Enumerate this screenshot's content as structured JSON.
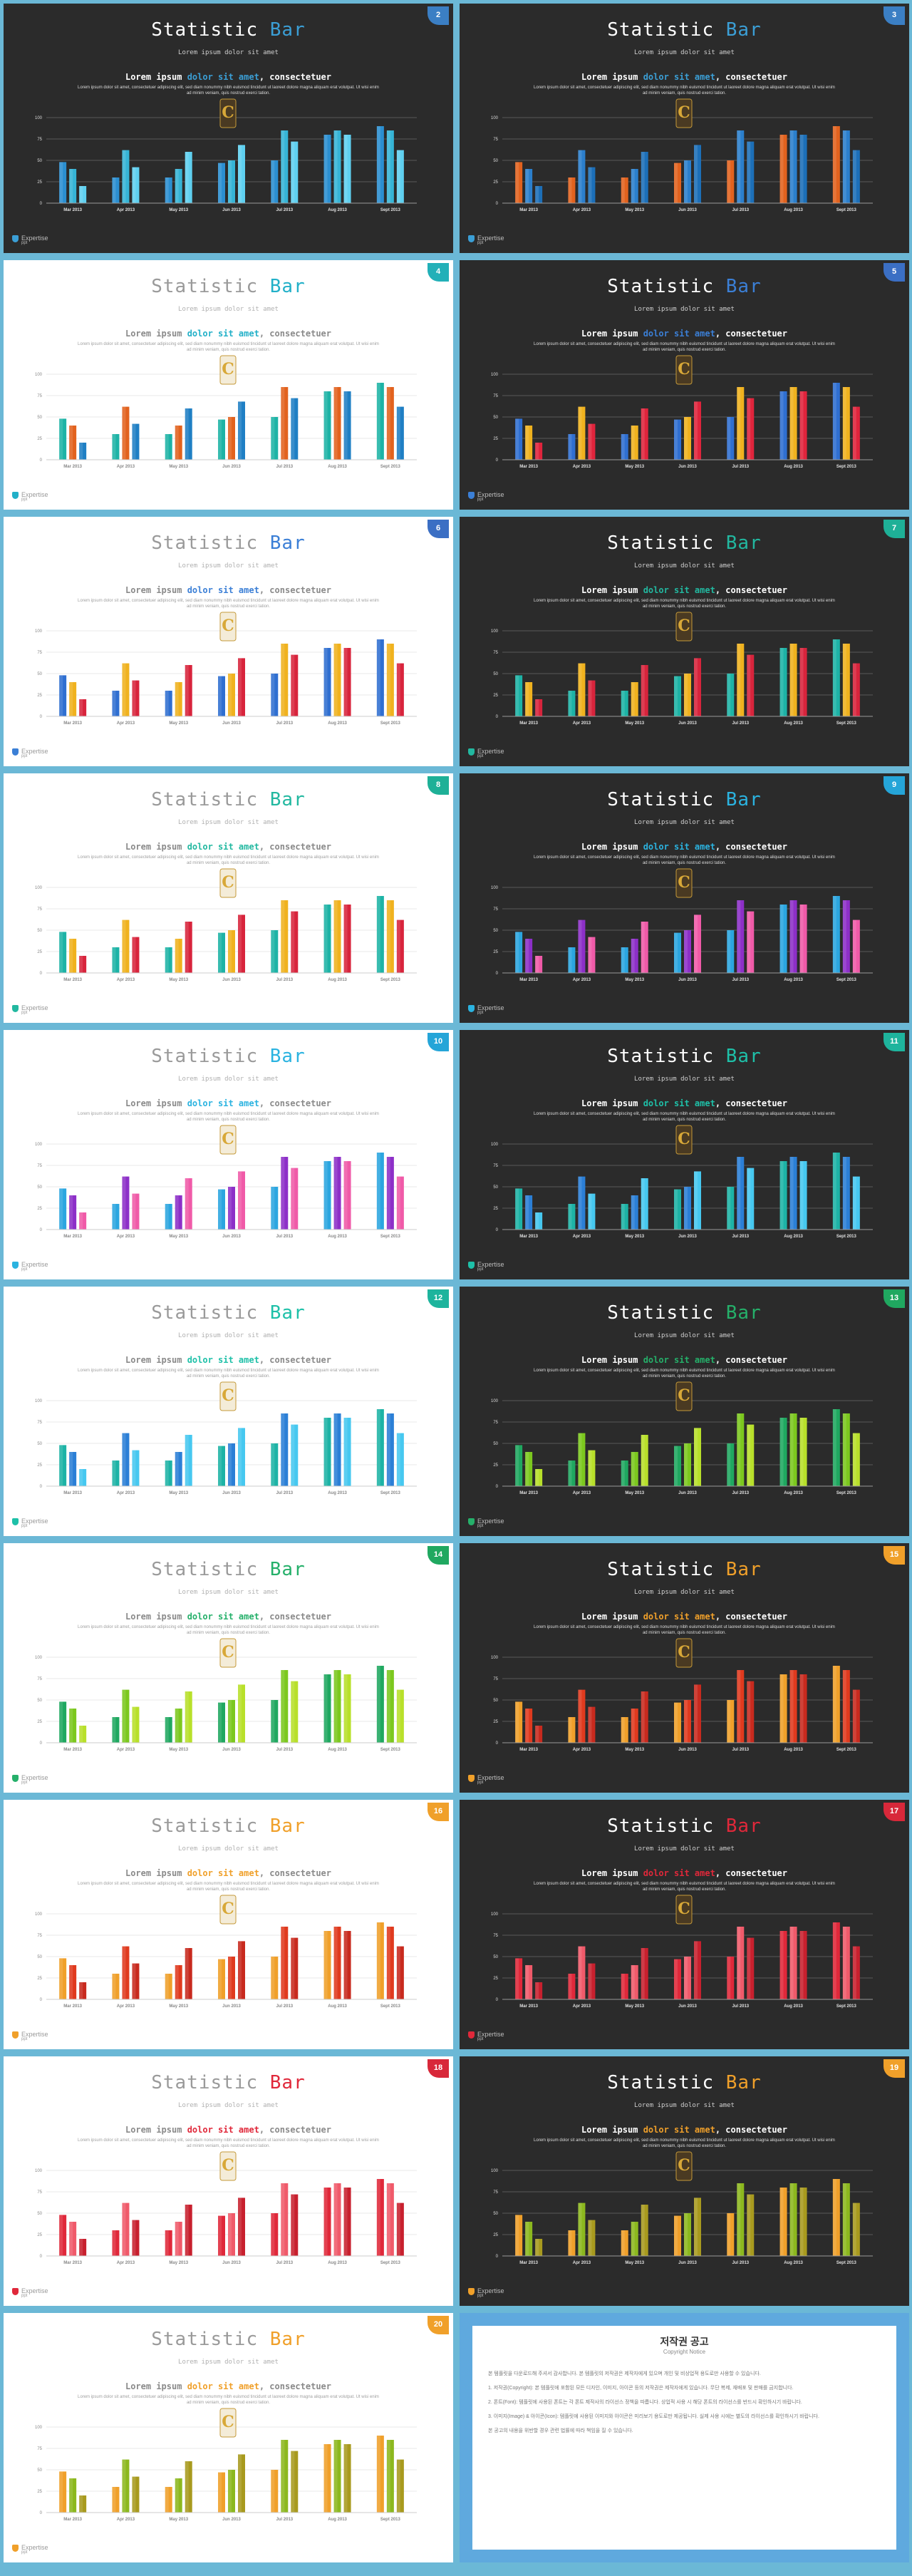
{
  "slide_text": {
    "title_word1": "Statistic",
    "title_word2": "Bar",
    "subtitle": "Lorem ipsum dolor sit amet",
    "heading_part1": "Lorem ipsum ",
    "heading_accent": "dolor sit amet",
    "heading_part2": ", consectetuer",
    "paragraph": "Lorem ipsum dolor sit amet, consectetuer adipiscing elit, sed diam nonummy nibh euismod tincidunt ut laoreet dolore magna aliquam erat volutpat. Ut wisi enim ad minim veniam, quis nostrud exerci tation.",
    "logo_text": "Expertise",
    "logo_sub": "ppt"
  },
  "chart_data": {
    "type": "bar",
    "categories": [
      "Mar 2013",
      "Apr 2013",
      "May 2013",
      "Jun 2013",
      "Jul 2013",
      "Aug 2013",
      "Sept 2013"
    ],
    "series": [
      {
        "values": [
          48,
          30,
          30,
          47,
          50,
          80,
          90
        ]
      },
      {
        "values": [
          40,
          62,
          40,
          50,
          85,
          85,
          85
        ]
      },
      {
        "values": [
          20,
          42,
          60,
          68,
          72,
          80,
          62
        ]
      }
    ],
    "y_ticks": [
      0,
      25,
      50,
      75,
      100
    ],
    "ylim": [
      0,
      100
    ],
    "grid": true,
    "logo_mark": "C"
  },
  "slides": [
    {
      "number": "2",
      "theme": "dark",
      "accent": "#3b9fd6",
      "badge": "#3b7fc4",
      "colors": [
        "#2b8fd1",
        "#36b4d6",
        "#5fd0f0"
      ]
    },
    {
      "number": "3",
      "theme": "dark",
      "accent": "#3b9fd6",
      "badge": "#3b7fc4",
      "colors": [
        "#e2621e",
        "#2b7fcc",
        "#1c6fb8"
      ]
    },
    {
      "number": "4",
      "theme": "light",
      "accent": "#22b0c8",
      "badge": "#22b0b8",
      "colors": [
        "#1db3a6",
        "#e2621e",
        "#1f7fc4"
      ]
    },
    {
      "number": "5",
      "theme": "dark",
      "accent": "#3b7fd6",
      "badge": "#3b6fc4",
      "colors": [
        "#2f6fd1",
        "#f0b21e",
        "#e0243c"
      ]
    },
    {
      "number": "6",
      "theme": "light",
      "accent": "#3b7fd6",
      "badge": "#3b6fc4",
      "colors": [
        "#2f6fd1",
        "#f0b21e",
        "#d8243c"
      ]
    },
    {
      "number": "7",
      "theme": "dark",
      "accent": "#22b8a0",
      "badge": "#1eb097",
      "colors": [
        "#1db3a6",
        "#f0b21e",
        "#d8243c"
      ]
    },
    {
      "number": "8",
      "theme": "light",
      "accent": "#22b8a0",
      "badge": "#1eb097",
      "colors": [
        "#1db3a6",
        "#f0b21e",
        "#d8243c"
      ]
    },
    {
      "number": "9",
      "theme": "dark",
      "accent": "#2bb3e0",
      "badge": "#25a5d8",
      "colors": [
        "#2ba6e0",
        "#8d2fc8",
        "#f05aa8"
      ]
    },
    {
      "number": "10",
      "theme": "light",
      "accent": "#2bb3e0",
      "badge": "#25a5d8",
      "colors": [
        "#2ba6e0",
        "#8d2fc8",
        "#f05aa8"
      ]
    },
    {
      "number": "11",
      "theme": "dark",
      "accent": "#1ec0a8",
      "badge": "#1eb49d",
      "colors": [
        "#1db3a6",
        "#2b7fd6",
        "#46c8f0"
      ]
    },
    {
      "number": "12",
      "theme": "light",
      "accent": "#1ec0a8",
      "badge": "#1eb49d",
      "colors": [
        "#1db3a6",
        "#2b7fd6",
        "#46c8f0"
      ]
    },
    {
      "number": "13",
      "theme": "dark",
      "accent": "#25b06a",
      "badge": "#20a860",
      "colors": [
        "#1fa860",
        "#7cc81e",
        "#b8e02a"
      ]
    },
    {
      "number": "14",
      "theme": "light",
      "accent": "#25b06a",
      "badge": "#20a860",
      "colors": [
        "#1fa860",
        "#7cc81e",
        "#b8e02a"
      ]
    },
    {
      "number": "15",
      "theme": "dark",
      "accent": "#f0a02a",
      "badge": "#f0a02a",
      "colors": [
        "#f0a02a",
        "#e03a1e",
        "#c82a1e"
      ]
    },
    {
      "number": "16",
      "theme": "light",
      "accent": "#f0a02a",
      "badge": "#f0a02a",
      "colors": [
        "#f0a02a",
        "#e03a1e",
        "#c82a1e"
      ]
    },
    {
      "number": "17",
      "theme": "dark",
      "accent": "#e0283a",
      "badge": "#d8283a",
      "colors": [
        "#e0283a",
        "#f05a6a",
        "#c8202e"
      ]
    },
    {
      "number": "18",
      "theme": "light",
      "accent": "#e0283a",
      "badge": "#d8283a",
      "colors": [
        "#e0283a",
        "#f05a6a",
        "#c8202e"
      ]
    },
    {
      "number": "19",
      "theme": "dark",
      "accent": "#f0a02a",
      "badge": "#f0a02a",
      "colors": [
        "#f0a02a",
        "#8cb81e",
        "#a89a1e"
      ]
    },
    {
      "number": "20",
      "theme": "light",
      "accent": "#f0a02a",
      "badge": "#f0a02a",
      "colors": [
        "#f0a02a",
        "#8cb81e",
        "#a89a1e"
      ]
    }
  ],
  "notice": {
    "title": "저작권 공고",
    "subtitle": "Copyright Notice",
    "paragraphs": [
      "본 템플릿을 다운로드해 주셔서 감사합니다. 본 템플릿의 저작권은 제작자에게 있으며 개인 및 비상업적 용도로만 사용할 수 있습니다.",
      "1. 저작권(Copyright): 본 템플릿에 포함된 모든 디자인, 이미지, 아이콘 등의 저작권은 제작자에게 있습니다. 무단 복제, 재배포 및 판매를 금지합니다.",
      "2. 폰트(Font): 템플릿에 사용된 폰트는 각 폰트 제작사의 라이선스 정책을 따릅니다. 상업적 사용 시 해당 폰트의 라이선스를 반드시 확인하시기 바랍니다.",
      "3. 이미지(Image) & 아이콘(Icon): 템플릿에 사용된 이미지와 아이콘은 미리보기 용도로만 제공됩니다. 실제 사용 시에는 별도의 라이선스를 확인하시기 바랍니다.",
      "본 공고의 내용을 위반할 경우 관련 법률에 따라 책임을 질 수 있습니다."
    ]
  }
}
